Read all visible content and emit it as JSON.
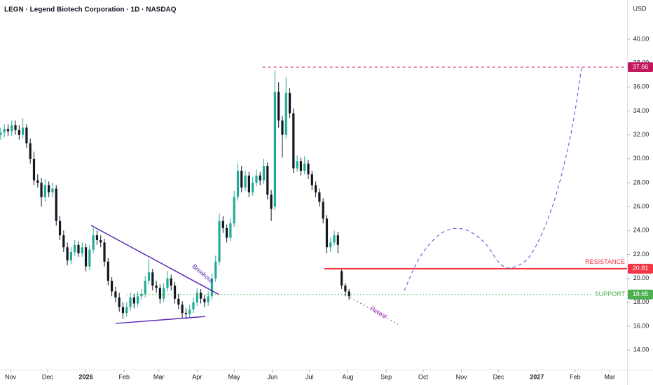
{
  "chart_data": {
    "type": "candlestick",
    "title": "LEGN · Legend Biotech Corporation · 1D · NASDAQ",
    "currency": "USD",
    "up_color": "#22ab94",
    "down_color": "#131722",
    "grid": false,
    "xlim": [
      -0.5,
      507
    ],
    "ylim": [
      12.37,
      43.28
    ],
    "xticks": [
      {
        "value": 8,
        "label": "Nov"
      },
      {
        "value": 38,
        "label": "Dec"
      },
      {
        "value": 69,
        "label": "2026"
      },
      {
        "value": 100,
        "label": "Feb"
      },
      {
        "value": 128,
        "label": "Mar"
      },
      {
        "value": 159,
        "label": "Apr"
      },
      {
        "value": 189,
        "label": "May"
      },
      {
        "value": 220,
        "label": "Jun"
      },
      {
        "value": 250,
        "label": "Jul"
      },
      {
        "value": 281,
        "label": "Aug"
      },
      {
        "value": 312,
        "label": "Sep"
      },
      {
        "value": 342,
        "label": "Oct"
      },
      {
        "value": 373,
        "label": "Nov"
      },
      {
        "value": 403,
        "label": "Dec"
      },
      {
        "value": 434,
        "label": "2027"
      },
      {
        "value": 465,
        "label": "Feb"
      },
      {
        "value": 493,
        "label": "Mar"
      }
    ],
    "yticks": [
      {
        "value": 14,
        "label": "14.00"
      },
      {
        "value": 16,
        "label": "16.00"
      },
      {
        "value": 18,
        "label": "18.00"
      },
      {
        "value": 20,
        "label": "20.00"
      },
      {
        "value": 22,
        "label": "22.00"
      },
      {
        "value": 24,
        "label": "24.00"
      },
      {
        "value": 26,
        "label": "26.00"
      },
      {
        "value": 28,
        "label": "28.00"
      },
      {
        "value": 30,
        "label": "30.00"
      },
      {
        "value": 32,
        "label": "32.00"
      },
      {
        "value": 34,
        "label": "34.00"
      },
      {
        "value": 36,
        "label": "36.00"
      },
      {
        "value": 38,
        "label": "38.00"
      },
      {
        "value": 40,
        "label": "40.00"
      }
    ],
    "x": [
      0,
      3,
      6,
      9,
      12,
      15,
      18,
      21,
      24,
      27,
      30,
      33,
      36,
      39,
      42,
      45,
      48,
      51,
      54,
      57,
      60,
      63,
      66,
      69,
      72,
      75,
      78,
      81,
      84,
      87,
      90,
      93,
      96,
      99,
      102,
      105,
      108,
      111,
      114,
      117,
      120,
      123,
      126,
      129,
      132,
      135,
      138,
      141,
      144,
      147,
      150,
      153,
      156,
      159,
      162,
      165,
      168,
      171,
      174,
      177,
      180,
      183,
      186,
      189,
      192,
      195,
      198,
      201,
      204,
      207,
      210,
      213,
      216,
      219,
      222,
      225,
      228,
      231,
      234,
      237,
      240,
      243,
      246,
      249,
      252,
      255,
      258,
      261,
      264,
      267,
      270,
      273,
      276,
      279,
      282
    ],
    "open": [
      32.0,
      32.2,
      32.5,
      32.3,
      32.8,
      32.4,
      32.0,
      32.6,
      31.3,
      30.0,
      28.2,
      28.0,
      26.8,
      27.8,
      27.2,
      27.5,
      24.8,
      23.6,
      22.6,
      21.5,
      22.2,
      22.8,
      22.1,
      22.6,
      21.0,
      22.4,
      23.6,
      23.2,
      23.0,
      21.4,
      19.8,
      18.9,
      18.4,
      17.6,
      17.1,
      17.6,
      18.4,
      17.9,
      18.5,
      18.7,
      19.8,
      20.5,
      19.4,
      19.2,
      18.3,
      19.2,
      20.0,
      19.4,
      18.3,
      17.8,
      17.1,
      17.0,
      17.4,
      18.0,
      18.8,
      18.3,
      18.0,
      18.5,
      20.0,
      21.4,
      24.8,
      24.2,
      23.4,
      24.6,
      26.8,
      29.0,
      27.6,
      28.6,
      27.2,
      28.0,
      28.6,
      28.2,
      29.4,
      27.0,
      26.0,
      35.6,
      33.2,
      32.0,
      35.5,
      33.8,
      29.2,
      29.8,
      29.0,
      29.6,
      28.7,
      27.8,
      27.2,
      26.4,
      25.0,
      22.6,
      23.0,
      23.6,
      20.6,
      19.4,
      18.9
    ],
    "high": [
      32.6,
      32.9,
      32.9,
      33.2,
      33.2,
      32.8,
      33.4,
      32.9,
      31.7,
      30.6,
      28.7,
      28.4,
      28.3,
      28.1,
      28.0,
      27.8,
      25.2,
      24.0,
      23.0,
      22.6,
      23.2,
      23.1,
      23.0,
      22.9,
      22.8,
      24.2,
      24.0,
      23.6,
      23.3,
      21.7,
      20.1,
      19.3,
      18.8,
      18.0,
      18.0,
      18.8,
      18.7,
      18.9,
      19.1,
      20.2,
      21.6,
      20.8,
      19.8,
      19.5,
      19.6,
      20.6,
      20.3,
      19.7,
      18.7,
      18.1,
      17.5,
      17.8,
      18.4,
      19.2,
      19.1,
      18.6,
      18.9,
      20.4,
      21.9,
      25.4,
      25.2,
      24.5,
      25.0,
      27.3,
      29.6,
      29.4,
      29.0,
      28.9,
      28.5,
      29.1,
      28.9,
      30.0,
      29.7,
      27.4,
      37.4,
      36.4,
      33.6,
      36.8,
      35.9,
      34.2,
      30.3,
      30.1,
      30.2,
      29.9,
      29.0,
      28.1,
      27.5,
      26.7,
      25.3,
      23.4,
      24.0,
      23.9,
      20.8,
      19.6,
      19.1
    ],
    "low": [
      31.6,
      31.8,
      31.9,
      31.9,
      32.0,
      31.6,
      31.7,
      30.9,
      29.6,
      27.8,
      27.6,
      26.0,
      26.4,
      26.8,
      26.8,
      24.4,
      23.2,
      22.2,
      21.1,
      21.2,
      21.9,
      21.8,
      21.8,
      20.6,
      20.7,
      22.1,
      22.8,
      22.6,
      21.0,
      19.4,
      18.5,
      18.0,
      17.2,
      16.6,
      16.8,
      17.3,
      17.5,
      17.6,
      18.2,
      18.4,
      19.5,
      19.0,
      18.8,
      17.9,
      18.0,
      18.9,
      19.0,
      17.9,
      17.4,
      16.7,
      16.6,
      16.7,
      17.1,
      17.7,
      17.9,
      17.6,
      17.7,
      18.2,
      19.7,
      21.1,
      23.8,
      23.0,
      23.1,
      24.3,
      26.5,
      27.2,
      27.3,
      26.8,
      26.9,
      27.7,
      27.8,
      27.9,
      26.6,
      24.8,
      25.7,
      32.6,
      30.1,
      31.7,
      33.4,
      28.8,
      28.9,
      28.6,
      28.7,
      28.3,
      27.4,
      26.8,
      26.0,
      24.6,
      22.1,
      22.2,
      22.7,
      22.1,
      19.1,
      18.5,
      18.2
    ],
    "close": [
      32.2,
      32.5,
      32.3,
      32.8,
      32.4,
      32.0,
      32.6,
      31.3,
      30.0,
      28.2,
      28.0,
      26.8,
      27.8,
      27.2,
      27.5,
      24.8,
      23.6,
      22.6,
      21.5,
      22.2,
      22.8,
      22.1,
      22.6,
      21.0,
      22.4,
      23.6,
      23.2,
      23.0,
      21.4,
      19.8,
      18.9,
      18.4,
      17.6,
      17.1,
      17.6,
      18.4,
      17.9,
      18.5,
      18.7,
      19.8,
      20.5,
      19.4,
      19.2,
      18.3,
      19.2,
      20.0,
      19.4,
      18.3,
      17.8,
      17.1,
      17.0,
      17.4,
      18.0,
      18.8,
      18.3,
      18.0,
      18.5,
      20.0,
      21.4,
      24.8,
      24.2,
      23.4,
      24.6,
      26.8,
      29.0,
      27.6,
      28.6,
      27.2,
      28.0,
      28.6,
      28.2,
      29.4,
      27.0,
      25.8,
      35.6,
      33.2,
      32.0,
      35.5,
      33.8,
      29.2,
      29.8,
      29.0,
      29.6,
      28.7,
      27.8,
      27.2,
      26.4,
      25.0,
      22.6,
      23.0,
      23.6,
      22.8,
      19.4,
      18.9,
      18.5
    ],
    "levels": [
      {
        "label": "RESISTANCE",
        "value": 20.81,
        "x_start": 262,
        "color": "#f23645",
        "style": "solid"
      },
      {
        "label": "SUPPORT",
        "value": 18.65,
        "x_start": 102,
        "color": "#4caf50",
        "style": "dotted"
      },
      {
        "value": 37.66,
        "x_start": 212,
        "color": "#c2185b",
        "style": "dashed"
      }
    ],
    "trendlines": [
      {
        "x": [
          73.2,
          177
        ],
        "y": [
          24.43,
          18.63
        ],
        "color": "#5b2bb5"
      },
      {
        "x": [
          93,
          165.6
        ],
        "y": [
          16.23,
          16.81
        ],
        "color": "#5b2bb5"
      }
    ],
    "retest_path": {
      "x": [
        283,
        321.6
      ],
      "y": [
        18.4,
        16.17
      ],
      "color": "#9c27b0"
    },
    "projection": {
      "x": [
        326.7,
        339.8,
        356.8,
        374,
        390.8,
        405,
        416.3,
        430.5,
        447.5,
        461.7,
        470.2
      ],
      "y": [
        18.98,
        21.85,
        23.78,
        24.13,
        23.08,
        21.15,
        20.97,
        22.2,
        26.3,
        32.15,
        37.66
      ],
      "color": "#5c5ce0"
    },
    "annotations": [
      "Breakout",
      "Retest"
    ]
  }
}
